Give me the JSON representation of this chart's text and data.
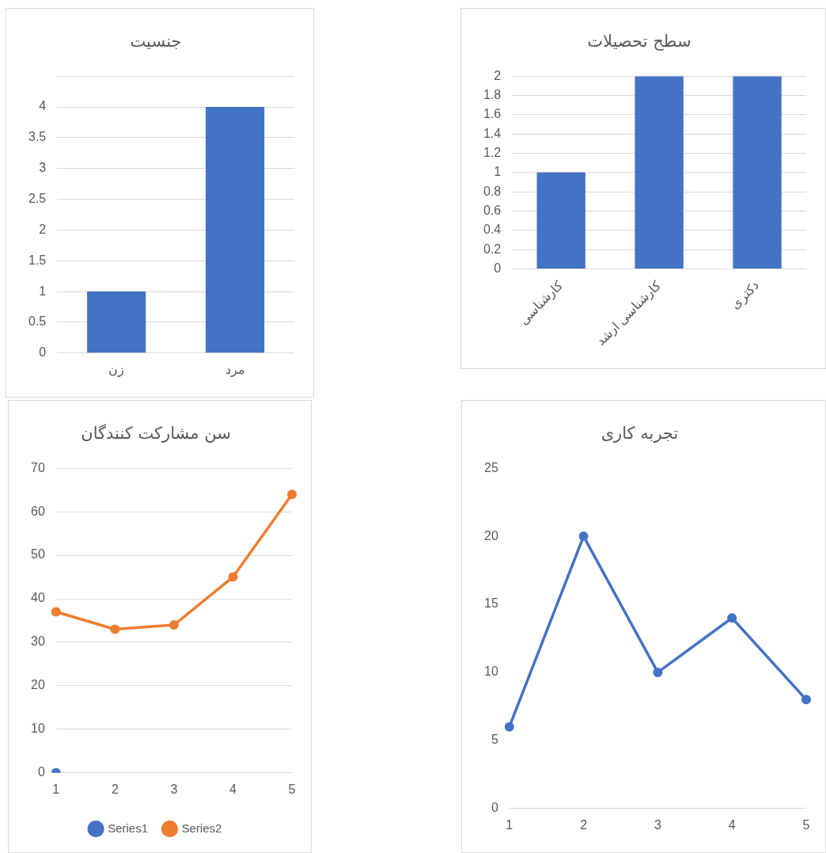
{
  "chart_data": [
    {
      "type": "bar",
      "title": "جنسیت",
      "categories": [
        "زن",
        "مرد"
      ],
      "values": [
        1,
        4
      ],
      "color": "#4472c4",
      "ylim": [
        0,
        4.5
      ],
      "yticks": [
        0,
        0.5,
        1,
        1.5,
        2,
        2.5,
        3,
        3.5,
        4,
        {
          "value": 4.5,
          "label": null
        }
      ],
      "grid": "y"
    },
    {
      "type": "bar",
      "title": "سطح تحصیلات",
      "categories": [
        "کارشناسی",
        "کارشناسی ارشد",
        "دکتری"
      ],
      "values": [
        1,
        2,
        2
      ],
      "color": "#4472c4",
      "ylim": [
        0,
        2
      ],
      "yticks": [
        0,
        0.2,
        0.4,
        0.6,
        0.8,
        1,
        1.2,
        1.4,
        1.6,
        1.8,
        2
      ],
      "grid": "y"
    },
    {
      "type": "line",
      "title": "سن مشارکت کنندگان",
      "categories": [
        "1",
        "2",
        "3",
        "4",
        "5"
      ],
      "series": [
        {
          "name": "Series1",
          "color": "#4472c4",
          "values": [
            0,
            null,
            null,
            null,
            null
          ]
        },
        {
          "name": "Series2",
          "color": "#ed7d31",
          "values": [
            37,
            33,
            34,
            45,
            64
          ]
        }
      ],
      "ylim": [
        0,
        70
      ],
      "yticks": [
        0,
        10,
        20,
        30,
        40,
        50,
        60,
        70
      ],
      "grid": "y",
      "legend": "bottom",
      "marker": "circle"
    },
    {
      "type": "line",
      "title": "تجربه کاری",
      "categories": [
        "1",
        "2",
        "3",
        "4",
        "5"
      ],
      "values": [
        6,
        20,
        10,
        14,
        8
      ],
      "color": "#4472c4",
      "ylim": [
        0,
        25
      ],
      "yticks": [
        0,
        5,
        10,
        15,
        20,
        25
      ],
      "marker": "circle"
    }
  ]
}
